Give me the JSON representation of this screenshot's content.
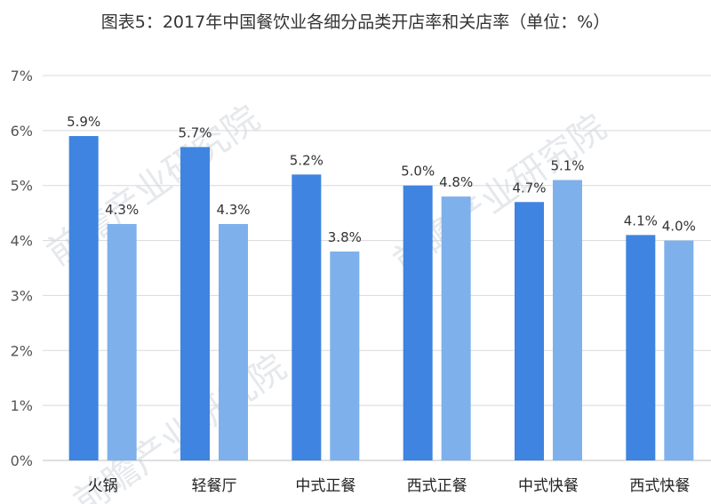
{
  "chart_data": {
    "type": "bar",
    "title": "图表5：2017年中国餐饮业各细分品类开店率和关店率（单位：%）",
    "categories": [
      "火锅",
      "轻餐厅",
      "中式正餐",
      "西式正餐",
      "中式快餐",
      "西式快餐"
    ],
    "series": [
      {
        "values": [
          5.9,
          5.7,
          5.2,
          5.0,
          4.7,
          4.1
        ],
        "labels": [
          "5.9%",
          "5.7%",
          "5.2%",
          "5.0%",
          "4.7%",
          "4.1%"
        ]
      },
      {
        "values": [
          4.3,
          4.3,
          3.8,
          4.8,
          5.1,
          4.0
        ],
        "labels": [
          "4.3%",
          "4.3%",
          "3.8%",
          "4.8%",
          "5.1%",
          "4.0%"
        ]
      }
    ],
    "yticks": [
      "0%",
      "1%",
      "2%",
      "3%",
      "4%",
      "5%",
      "6%",
      "7%"
    ],
    "ylim": [
      0,
      7
    ],
    "grid": true,
    "watermark": "前瞻产业研究院",
    "colors": {
      "series1": "#3f84e0",
      "series2": "#7eb0ec",
      "grid": "#d9d9d9",
      "axis": "#bfbfbf"
    }
  }
}
